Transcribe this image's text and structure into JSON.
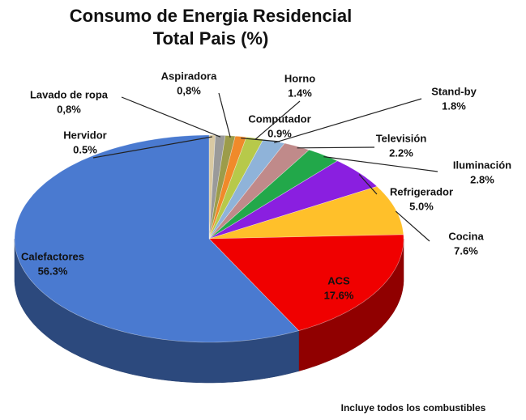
{
  "chart_data": {
    "type": "pie3d",
    "title": "Consumo de Energia Residencial Total Pais (%)",
    "categories": [
      "Hervidor",
      "Lavado de ropa",
      "Aspiradora",
      "Computador",
      "Horno",
      "Stand-by",
      "Televisión",
      "Iluminación",
      "Refrigerador",
      "Cocina",
      "ACS",
      "Calefactores"
    ],
    "values": [
      0.5,
      0.8,
      0.8,
      0.9,
      1.4,
      1.8,
      2.2,
      2.8,
      5.0,
      7.6,
      17.6,
      56.3
    ],
    "value_labels": [
      "0.5%",
      "0,8%",
      "0,8%",
      "0.9%",
      "1.4%",
      "1.8%",
      "2.2%",
      "2.8%",
      "5.0%",
      "7.6%",
      "17.6%",
      "56.3%"
    ],
    "colors": [
      "#d9c9a3",
      "#9a9a9a",
      "#9c9c4a",
      "#f08a2a",
      "#b7c94a",
      "#8fb3d9",
      "#c08a8a",
      "#22a84a",
      "#8a1fe0",
      "#ffc02a",
      "#f00000",
      "#4a7ad0"
    ],
    "annotation": "Incluye todos los combustibles"
  }
}
